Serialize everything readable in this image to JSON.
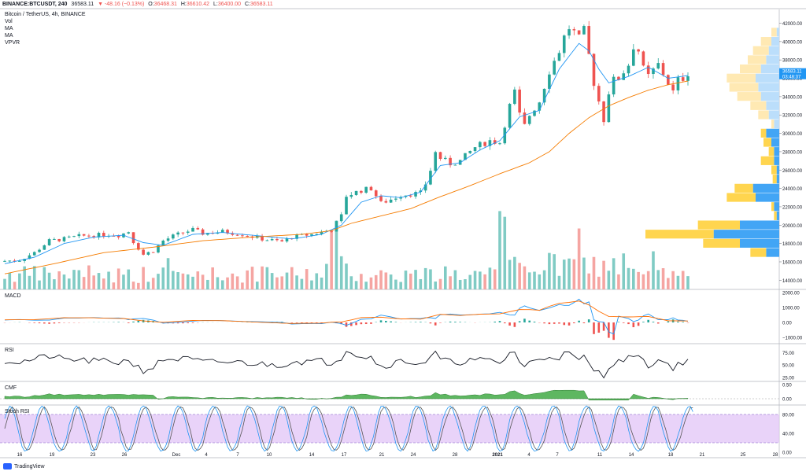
{
  "header": {
    "symbol": "BINANCE:BTCUSDT, 240",
    "last": "36583.11",
    "change": "▼ -48.16 (−0.13%)",
    "o_label": "O:",
    "o": "36468.31",
    "h_label": "H:",
    "h": "36610.42",
    "l_label": "L:",
    "l": "36400.00",
    "c_label": "C:",
    "c": "36583.11"
  },
  "legend": {
    "pair": "Bitcoin / TetherUS, 4h, BINANCE",
    "vol": "Vol",
    "ma1": "MA",
    "ma2": "MA",
    "vpvr": "VPVR"
  },
  "panels": {
    "macd": "MACD",
    "rsi": "RSI",
    "cmf": "CMF",
    "stoch": "Stoch RSI"
  },
  "brand": "TradingView",
  "colors": {
    "up": "#26a69a",
    "down": "#ef5350",
    "ma_fast": "#2196f3",
    "ma_slow": "#f57c00",
    "macd_line": "#2196f3",
    "signal_line": "#ff6d00",
    "cmf": "#4caf50",
    "stoch_k": "#2196f3",
    "stoch_d": "#e91e63",
    "stoch_band": "#e1c4f7",
    "vp_up": "#64b5f6",
    "vp_down": "#ffd54f"
  },
  "chart_data": {
    "type": "candlestick",
    "title": "Bitcoin / TetherUS, 4h, BINANCE",
    "price_axis": [
      "42000.00",
      "40000.00",
      "38000.00",
      "36000.00",
      "34000.00",
      "32000.00",
      "30000.00",
      "28000.00",
      "26000.00",
      "24000.00",
      "22000.00",
      "20000.00",
      "18000.00",
      "16000.00",
      "14000.00"
    ],
    "price_range": [
      13000,
      43500
    ],
    "current_price": "36583.11",
    "countdown": "03:48:37",
    "x_ticks": [
      "16",
      "19",
      "23",
      "26",
      "Dec",
      "4",
      "7",
      "10",
      "14",
      "17",
      "21",
      "24",
      "28",
      "2021",
      "4",
      "7",
      "11",
      "14",
      "18",
      "21",
      "25",
      "28"
    ],
    "close_path": [
      [
        0,
        16100
      ],
      [
        3,
        16200
      ],
      [
        6,
        17000
      ],
      [
        9,
        18300
      ],
      [
        12,
        18500
      ],
      [
        15,
        18800
      ],
      [
        18,
        18900
      ],
      [
        21,
        19000
      ],
      [
        23,
        18900
      ],
      [
        25,
        19300
      ],
      [
        26,
        18200
      ],
      [
        27,
        17500
      ],
      [
        28,
        16800
      ],
      [
        30,
        17200
      ],
      [
        32,
        18300
      ],
      [
        34,
        18800
      ],
      [
        36,
        19200
      ],
      [
        38,
        19500
      ],
      [
        40,
        19100
      ],
      [
        44,
        19300
      ],
      [
        48,
        19000
      ],
      [
        52,
        18500
      ],
      [
        56,
        18200
      ],
      [
        58,
        18700
      ],
      [
        62,
        19000
      ],
      [
        66,
        19500
      ],
      [
        68,
        21000
      ],
      [
        69,
        23200
      ],
      [
        70,
        23400
      ],
      [
        72,
        23800
      ],
      [
        74,
        24000
      ],
      [
        76,
        22400
      ],
      [
        78,
        22800
      ],
      [
        80,
        23300
      ],
      [
        84,
        23500
      ],
      [
        85,
        24500
      ],
      [
        86,
        26000
      ],
      [
        87,
        27900
      ],
      [
        88,
        27300
      ],
      [
        90,
        26700
      ],
      [
        92,
        27000
      ],
      [
        95,
        28500
      ],
      [
        98,
        29200
      ],
      [
        100,
        29000
      ],
      [
        102,
        33000
      ],
      [
        103,
        34500
      ],
      [
        104,
        32000
      ],
      [
        105,
        30800
      ],
      [
        106,
        32000
      ],
      [
        108,
        33500
      ],
      [
        110,
        36800
      ],
      [
        112,
        39000
      ],
      [
        113,
        40500
      ],
      [
        114,
        41500
      ],
      [
        115,
        41000
      ],
      [
        116,
        40300
      ],
      [
        117,
        41200
      ],
      [
        118,
        38500
      ],
      [
        119,
        35500
      ],
      [
        120,
        33500
      ],
      [
        121,
        31500
      ],
      [
        122,
        34500
      ],
      [
        123,
        35800
      ],
      [
        124,
        36000
      ],
      [
        126,
        37500
      ],
      [
        127,
        39500
      ],
      [
        128,
        39000
      ],
      [
        129,
        37000
      ],
      [
        130,
        36200
      ],
      [
        132,
        37500
      ],
      [
        134,
        35500
      ],
      [
        135,
        34500
      ],
      [
        136,
        35800
      ],
      [
        137,
        36000
      ],
      [
        138,
        36583
      ]
    ],
    "ma_fast_path": [
      [
        0,
        15800
      ],
      [
        6,
        16500
      ],
      [
        12,
        18000
      ],
      [
        18,
        18700
      ],
      [
        24,
        18900
      ],
      [
        28,
        18100
      ],
      [
        32,
        17800
      ],
      [
        38,
        19000
      ],
      [
        44,
        19200
      ],
      [
        52,
        18800
      ],
      [
        58,
        18500
      ],
      [
        64,
        19000
      ],
      [
        68,
        20000
      ],
      [
        72,
        22500
      ],
      [
        76,
        23200
      ],
      [
        80,
        23000
      ],
      [
        84,
        23600
      ],
      [
        88,
        26500
      ],
      [
        92,
        26800
      ],
      [
        96,
        28200
      ],
      [
        100,
        29200
      ],
      [
        104,
        31800
      ],
      [
        108,
        32500
      ],
      [
        112,
        37000
      ],
      [
        116,
        39800
      ],
      [
        118,
        39000
      ],
      [
        120,
        37000
      ],
      [
        122,
        35500
      ],
      [
        126,
        36200
      ],
      [
        130,
        37200
      ],
      [
        134,
        36000
      ],
      [
        138,
        36300
      ]
    ],
    "ma_slow_path": [
      [
        0,
        14700
      ],
      [
        10,
        15800
      ],
      [
        20,
        17000
      ],
      [
        30,
        17600
      ],
      [
        40,
        18300
      ],
      [
        50,
        18700
      ],
      [
        60,
        19000
      ],
      [
        66,
        19400
      ],
      [
        70,
        20200
      ],
      [
        76,
        21000
      ],
      [
        82,
        21800
      ],
      [
        88,
        23100
      ],
      [
        94,
        24300
      ],
      [
        100,
        25600
      ],
      [
        106,
        26800
      ],
      [
        110,
        28000
      ],
      [
        114,
        30000
      ],
      [
        118,
        31700
      ],
      [
        122,
        33000
      ],
      [
        126,
        33900
      ],
      [
        130,
        34700
      ],
      [
        134,
        35300
      ],
      [
        138,
        35700
      ]
    ],
    "vpvr": [
      {
        "price": 41000,
        "up": 2,
        "down": 4
      },
      {
        "price": 40000,
        "up": 6,
        "down": 8
      },
      {
        "price": 39000,
        "up": 8,
        "down": 12
      },
      {
        "price": 38000,
        "up": 10,
        "down": 14
      },
      {
        "price": 37000,
        "up": 14,
        "down": 16
      },
      {
        "price": 36000,
        "up": 18,
        "down": 22
      },
      {
        "price": 35000,
        "up": 16,
        "down": 22
      },
      {
        "price": 34000,
        "up": 14,
        "down": 18
      },
      {
        "price": 33000,
        "up": 10,
        "down": 12
      },
      {
        "price": 32000,
        "up": 8,
        "down": 8
      },
      {
        "price": 31000,
        "up": 4,
        "down": 2
      },
      {
        "price": 30000,
        "up": 10,
        "down": 4
      },
      {
        "price": 29000,
        "up": 6,
        "down": 6
      },
      {
        "price": 28000,
        "up": 4,
        "down": 4
      },
      {
        "price": 27000,
        "up": 4,
        "down": 10
      },
      {
        "price": 26000,
        "up": 2,
        "down": 4
      },
      {
        "price": 25000,
        "up": 2,
        "down": 3
      },
      {
        "price": 24000,
        "up": 20,
        "down": 14
      },
      {
        "price": 23000,
        "up": 18,
        "down": 22
      },
      {
        "price": 22000,
        "up": 4,
        "down": 2
      },
      {
        "price": 21000,
        "up": 2,
        "down": 2
      },
      {
        "price": 20000,
        "up": 30,
        "down": 32
      },
      {
        "price": 19000,
        "up": 50,
        "down": 52
      },
      {
        "price": 18000,
        "up": 30,
        "down": 28
      },
      {
        "price": 17000,
        "up": 10,
        "down": 12
      }
    ],
    "macd_axis": [
      "2000.00",
      "1000.00",
      "0.00",
      "−1000.00"
    ],
    "rsi_axis": [
      "75.00",
      "50.00",
      "25.00"
    ],
    "cmf_axis": [
      "0.50",
      "0.00"
    ],
    "stoch_axis": [
      "80.00",
      "40.00",
      "0.00"
    ]
  }
}
